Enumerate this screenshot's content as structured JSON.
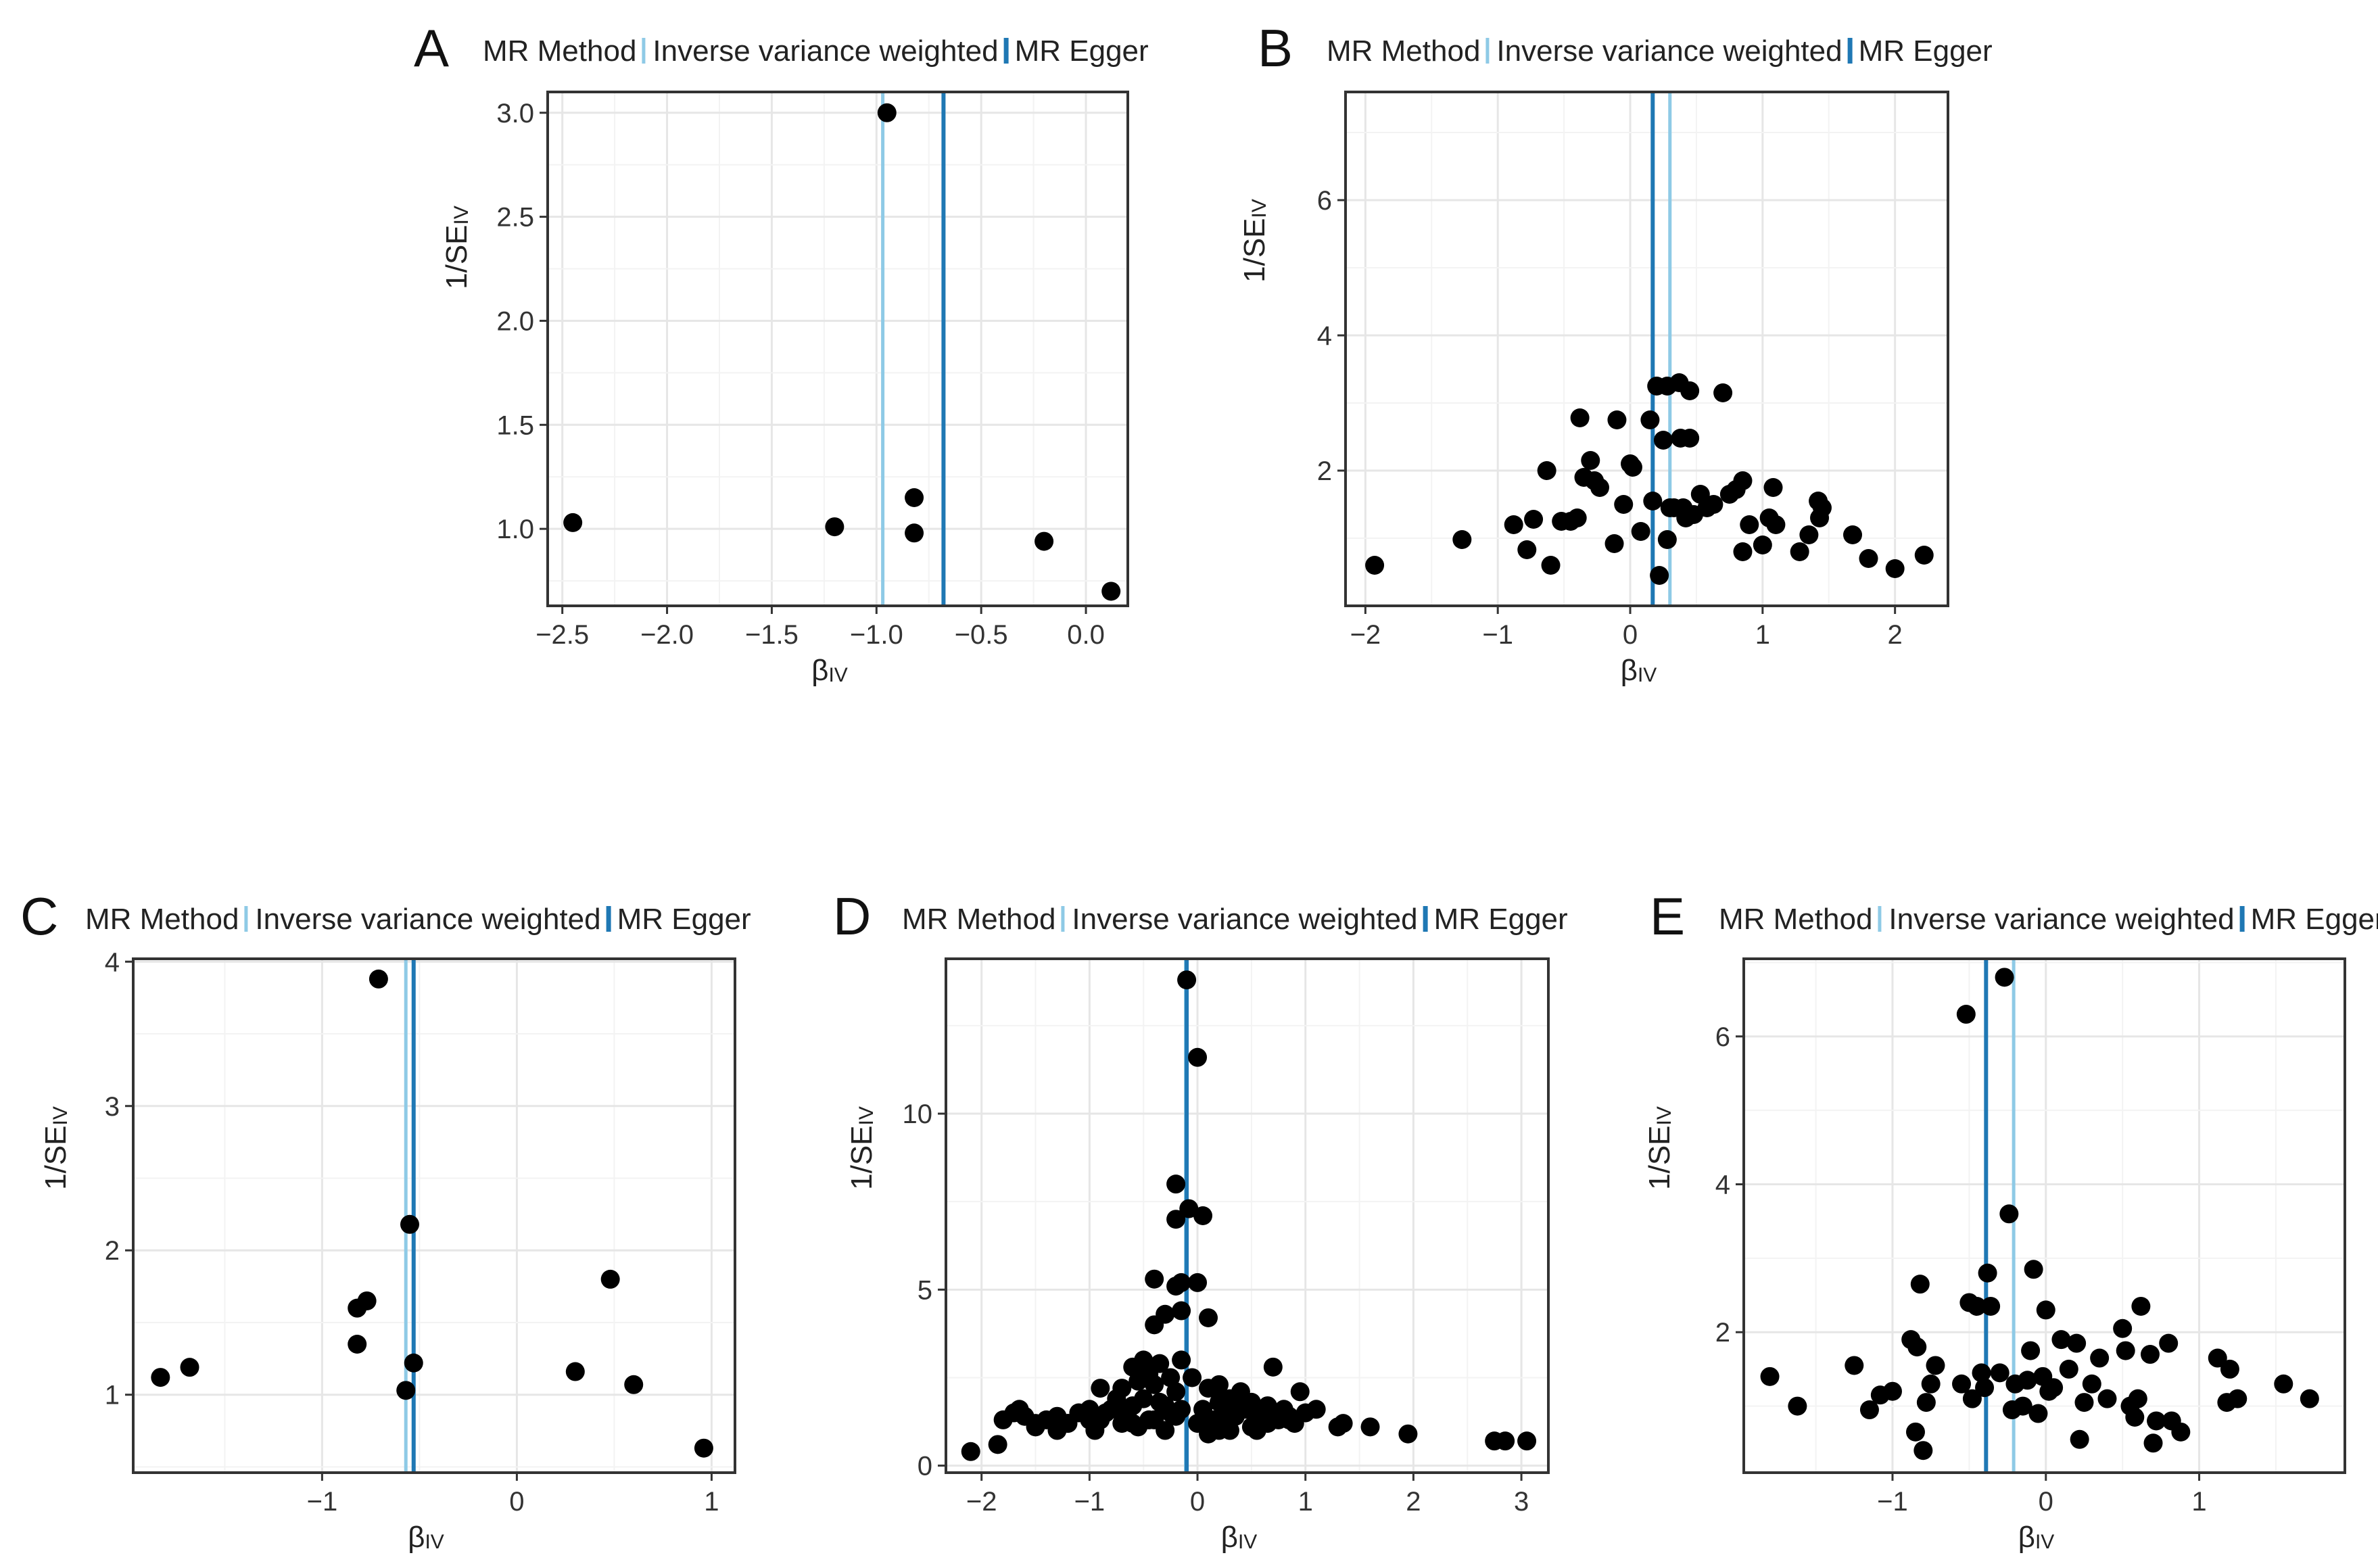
{
  "colors": {
    "ivw": "#8ecae6",
    "egger": "#1f78b4",
    "points": "#000000"
  },
  "chart_data": [
    {
      "panel": "A",
      "type": "scatter",
      "legend": {
        "title": "MR Method",
        "entries": [
          "Inverse variance weighted",
          "MR Egger"
        ]
      },
      "xlabel": {
        "main": "β",
        "sub": "IV"
      },
      "ylabel": {
        "main": "1/SE",
        "sub": "IV"
      },
      "xlim": [
        -2.57,
        0.2
      ],
      "ylim": [
        0.63,
        3.1
      ],
      "xticks": [
        -2.5,
        -2.0,
        -1.5,
        -1.0,
        -0.5,
        0.0
      ],
      "xtick_labels": [
        "−2.5",
        "−2.0",
        "−1.5",
        "−1.0",
        "−0.5",
        "0.0"
      ],
      "yticks": [
        1.0,
        1.5,
        2.0,
        2.5,
        3.0
      ],
      "ytick_labels": [
        "1.0",
        "1.5",
        "2.0",
        "2.5",
        "3.0"
      ],
      "vlines": [
        {
          "method": "Inverse variance weighted",
          "x": -0.97
        },
        {
          "method": "MR Egger",
          "x": -0.68
        }
      ],
      "x": [
        -2.45,
        -1.2,
        -0.95,
        -0.82,
        -0.82,
        -0.2,
        0.12
      ],
      "y": [
        1.03,
        1.01,
        3.0,
        1.15,
        0.98,
        0.94,
        0.7
      ]
    },
    {
      "panel": "B",
      "type": "scatter",
      "legend": {
        "title": "MR Method",
        "entries": [
          "Inverse variance weighted",
          "MR Egger"
        ]
      },
      "xlabel": {
        "main": "β",
        "sub": "IV"
      },
      "ylabel": {
        "main": "1/SE",
        "sub": "IV"
      },
      "xlim": [
        -2.15,
        2.4
      ],
      "ylim": [
        0.0,
        7.6
      ],
      "xticks": [
        -2,
        -1,
        0,
        1,
        2
      ],
      "xtick_labels": [
        "−2",
        "−1",
        "0",
        "1",
        "2"
      ],
      "yticks": [
        2,
        4,
        6
      ],
      "ytick_labels": [
        "2",
        "4",
        "6"
      ],
      "vlines": [
        {
          "method": "Inverse variance weighted",
          "x": 0.3
        },
        {
          "method": "MR Egger",
          "x": 0.17
        }
      ],
      "x": [
        -1.93,
        -1.27,
        -0.88,
        -0.78,
        -0.73,
        -0.63,
        -0.6,
        -0.52,
        -0.45,
        -0.4,
        -0.38,
        -0.35,
        -0.3,
        -0.27,
        -0.23,
        -0.12,
        -0.1,
        -0.05,
        0.0,
        0.02,
        0.08,
        0.15,
        0.17,
        0.2,
        0.22,
        0.25,
        0.28,
        0.28,
        0.3,
        0.33,
        0.37,
        0.38,
        0.4,
        0.42,
        0.45,
        0.45,
        0.48,
        0.53,
        0.58,
        0.63,
        0.7,
        0.75,
        0.8,
        0.85,
        0.85,
        0.9,
        1.0,
        1.05,
        1.08,
        1.1,
        1.28,
        1.35,
        1.42,
        1.43,
        1.45,
        1.68,
        1.8,
        2.0,
        2.22
      ],
      "y": [
        0.6,
        0.98,
        1.2,
        0.83,
        1.28,
        2.0,
        0.6,
        1.25,
        1.25,
        1.3,
        2.78,
        1.9,
        2.15,
        1.85,
        1.75,
        0.92,
        2.75,
        1.5,
        2.1,
        2.05,
        1.1,
        2.75,
        1.55,
        3.25,
        0.45,
        2.45,
        3.25,
        0.98,
        1.45,
        1.45,
        3.3,
        2.48,
        1.45,
        1.3,
        3.18,
        2.48,
        1.35,
        1.65,
        1.45,
        1.5,
        3.15,
        1.65,
        1.72,
        1.85,
        0.8,
        1.2,
        0.9,
        1.3,
        1.75,
        1.2,
        0.8,
        1.05,
        1.55,
        1.3,
        1.45,
        1.05,
        0.7,
        0.55,
        0.75
      ]
    },
    {
      "panel": "C",
      "type": "scatter",
      "legend": {
        "title": "MR Method",
        "entries": [
          "Inverse variance weighted",
          "MR Egger"
        ]
      },
      "xlabel": {
        "main": "β",
        "sub": "IV"
      },
      "ylabel": {
        "main": "1/SE",
        "sub": "IV"
      },
      "xlim": [
        -1.97,
        1.12
      ],
      "ylim": [
        0.46,
        4.02
      ],
      "xticks": [
        -1,
        0,
        1
      ],
      "xtick_labels": [
        "−1",
        "0",
        "1"
      ],
      "yticks": [
        1,
        2,
        3,
        4
      ],
      "ytick_labels": [
        "1",
        "2",
        "3",
        "4"
      ],
      "vlines": [
        {
          "method": "Inverse variance weighted",
          "x": -0.57
        },
        {
          "method": "MR Egger",
          "x": -0.53
        }
      ],
      "x": [
        -1.83,
        -1.68,
        -0.82,
        -0.82,
        -0.77,
        -0.71,
        -0.57,
        -0.55,
        -0.53,
        0.3,
        0.48,
        0.6,
        0.96
      ],
      "y": [
        1.12,
        1.19,
        1.6,
        1.35,
        1.65,
        3.88,
        1.03,
        2.18,
        1.22,
        1.16,
        1.8,
        1.07,
        0.63
      ]
    },
    {
      "panel": "D",
      "type": "scatter",
      "legend": {
        "title": "MR Method",
        "entries": [
          "Inverse variance weighted",
          "MR Egger"
        ]
      },
      "xlabel": {
        "main": "β",
        "sub": "IV"
      },
      "ylabel": {
        "main": "1/SE",
        "sub": "IV"
      },
      "xlim": [
        -2.33,
        3.25
      ],
      "ylim": [
        -0.2,
        14.4
      ],
      "xticks": [
        -2,
        -1,
        0,
        1,
        2,
        3
      ],
      "xtick_labels": [
        "−2",
        "−1",
        "0",
        "1",
        "2",
        "3"
      ],
      "yticks": [
        0,
        5,
        10
      ],
      "ytick_labels": [
        "0",
        "5",
        "10"
      ],
      "vlines": [
        {
          "method": "Inverse variance weighted",
          "x": -0.11
        },
        {
          "method": "MR Egger",
          "x": -0.1
        }
      ],
      "x": [
        -0.1,
        0.0,
        -0.2,
        -0.08,
        -0.2,
        0.05,
        -0.15,
        0.1,
        -0.4,
        -0.2,
        0.0,
        -0.4,
        -0.3,
        -0.15,
        -0.6,
        -0.5,
        -0.45,
        -0.35,
        -0.25,
        -0.15,
        0.2,
        0.4,
        0.7,
        -2.1,
        -1.85,
        -1.8,
        -1.7,
        -1.6,
        -1.5,
        -1.4,
        -1.3,
        -1.2,
        -1.1,
        -1.0,
        -0.9,
        -0.8,
        -0.75,
        -0.7,
        -0.65,
        -0.6,
        -0.55,
        -0.5,
        -0.45,
        -0.4,
        -0.35,
        -0.3,
        -0.25,
        -0.2,
        -0.15,
        -0.05,
        0.05,
        0.1,
        0.15,
        0.2,
        0.25,
        0.3,
        0.35,
        0.4,
        0.45,
        0.5,
        0.55,
        0.6,
        0.65,
        0.75,
        0.8,
        0.85,
        0.9,
        1.0,
        1.1,
        1.3,
        1.35,
        1.6,
        1.95,
        2.75,
        2.85,
        3.05,
        -1.5,
        -1.2,
        -0.95,
        -0.9,
        -0.7,
        -0.55,
        -0.45,
        -0.3,
        -0.2,
        0.1,
        0.3,
        0.5,
        0.65,
        0.95,
        -1.0,
        -0.4,
        0.0,
        0.4,
        -1.3,
        -0.85,
        -0.6,
        0.2,
        0.55,
        0.85,
        -1.65,
        0.3
      ],
      "y": [
        13.8,
        11.6,
        8.0,
        7.3,
        7.0,
        7.1,
        5.2,
        4.2,
        5.3,
        5.1,
        5.2,
        4.0,
        4.3,
        4.4,
        2.8,
        3.0,
        2.6,
        2.9,
        2.5,
        3.0,
        2.3,
        2.0,
        2.8,
        0.4,
        0.6,
        1.3,
        1.5,
        1.4,
        1.2,
        1.3,
        1.4,
        1.2,
        1.5,
        1.3,
        2.2,
        1.6,
        1.9,
        2.2,
        1.5,
        1.7,
        2.4,
        1.9,
        2.7,
        2.3,
        1.8,
        1.7,
        1.5,
        2.1,
        1.6,
        2.5,
        1.6,
        2.2,
        1.3,
        1.8,
        1.5,
        1.9,
        1.4,
        2.1,
        1.6,
        1.8,
        1.5,
        1.4,
        1.7,
        1.3,
        1.6,
        1.4,
        1.2,
        1.5,
        1.6,
        1.1,
        1.2,
        1.1,
        0.9,
        0.7,
        0.7,
        0.7,
        1.1,
        1.2,
        1.0,
        1.3,
        1.2,
        1.1,
        1.3,
        1.0,
        1.4,
        0.9,
        1.0,
        1.1,
        1.2,
        2.1,
        1.6,
        1.3,
        1.2,
        1.6,
        1.0,
        1.5,
        1.2,
        1.0,
        1.0,
        1.3,
        1.6,
        1.3
      ]
    },
    {
      "panel": "E",
      "type": "scatter",
      "legend": {
        "title": "MR Method",
        "entries": [
          "Inverse variance weighted",
          "MR Egger"
        ]
      },
      "xlabel": {
        "main": "β",
        "sub": "IV"
      },
      "ylabel": {
        "main": "1/SE",
        "sub": "IV"
      },
      "xlim": [
        -1.97,
        1.95
      ],
      "ylim": [
        0.1,
        7.05
      ],
      "xticks": [
        -1,
        0,
        1
      ],
      "xtick_labels": [
        "−1",
        "0",
        "1"
      ],
      "yticks": [
        2,
        4,
        6
      ],
      "ytick_labels": [
        "2",
        "4",
        "6"
      ],
      "vlines": [
        {
          "method": "Inverse variance weighted",
          "x": -0.21
        },
        {
          "method": "MR Egger",
          "x": -0.39
        }
      ],
      "x": [
        -1.8,
        -1.62,
        -1.25,
        -1.15,
        -1.08,
        -1.0,
        -0.88,
        -0.85,
        -0.84,
        -0.82,
        -0.8,
        -0.78,
        -0.75,
        -0.72,
        -0.55,
        -0.52,
        -0.5,
        -0.48,
        -0.45,
        -0.42,
        -0.4,
        -0.38,
        -0.36,
        -0.3,
        -0.27,
        -0.24,
        -0.22,
        -0.2,
        -0.15,
        -0.12,
        -0.1,
        -0.08,
        -0.05,
        -0.02,
        0.0,
        0.02,
        0.05,
        0.1,
        0.15,
        0.2,
        0.22,
        0.25,
        0.3,
        0.35,
        0.4,
        0.5,
        0.52,
        0.55,
        0.58,
        0.6,
        0.62,
        0.68,
        0.7,
        0.72,
        0.8,
        0.82,
        0.88,
        1.12,
        1.18,
        1.2,
        1.25,
        1.55,
        1.72
      ],
      "y": [
        1.4,
        1.0,
        1.55,
        0.95,
        1.15,
        1.2,
        1.9,
        0.65,
        1.8,
        2.65,
        0.4,
        1.05,
        1.3,
        1.55,
        1.3,
        6.3,
        2.4,
        1.1,
        2.35,
        1.45,
        1.25,
        2.8,
        2.35,
        1.45,
        6.8,
        3.6,
        0.95,
        1.3,
        1.0,
        1.35,
        1.75,
        2.85,
        0.9,
        1.4,
        2.3,
        1.2,
        1.25,
        1.9,
        1.5,
        1.85,
        0.55,
        1.05,
        1.3,
        1.65,
        1.1,
        2.05,
        1.75,
        1.0,
        0.85,
        1.1,
        2.35,
        1.7,
        0.5,
        0.8,
        1.85,
        0.8,
        0.65,
        1.65,
        1.05,
        1.5,
        1.1,
        1.3,
        1.1
      ]
    }
  ]
}
